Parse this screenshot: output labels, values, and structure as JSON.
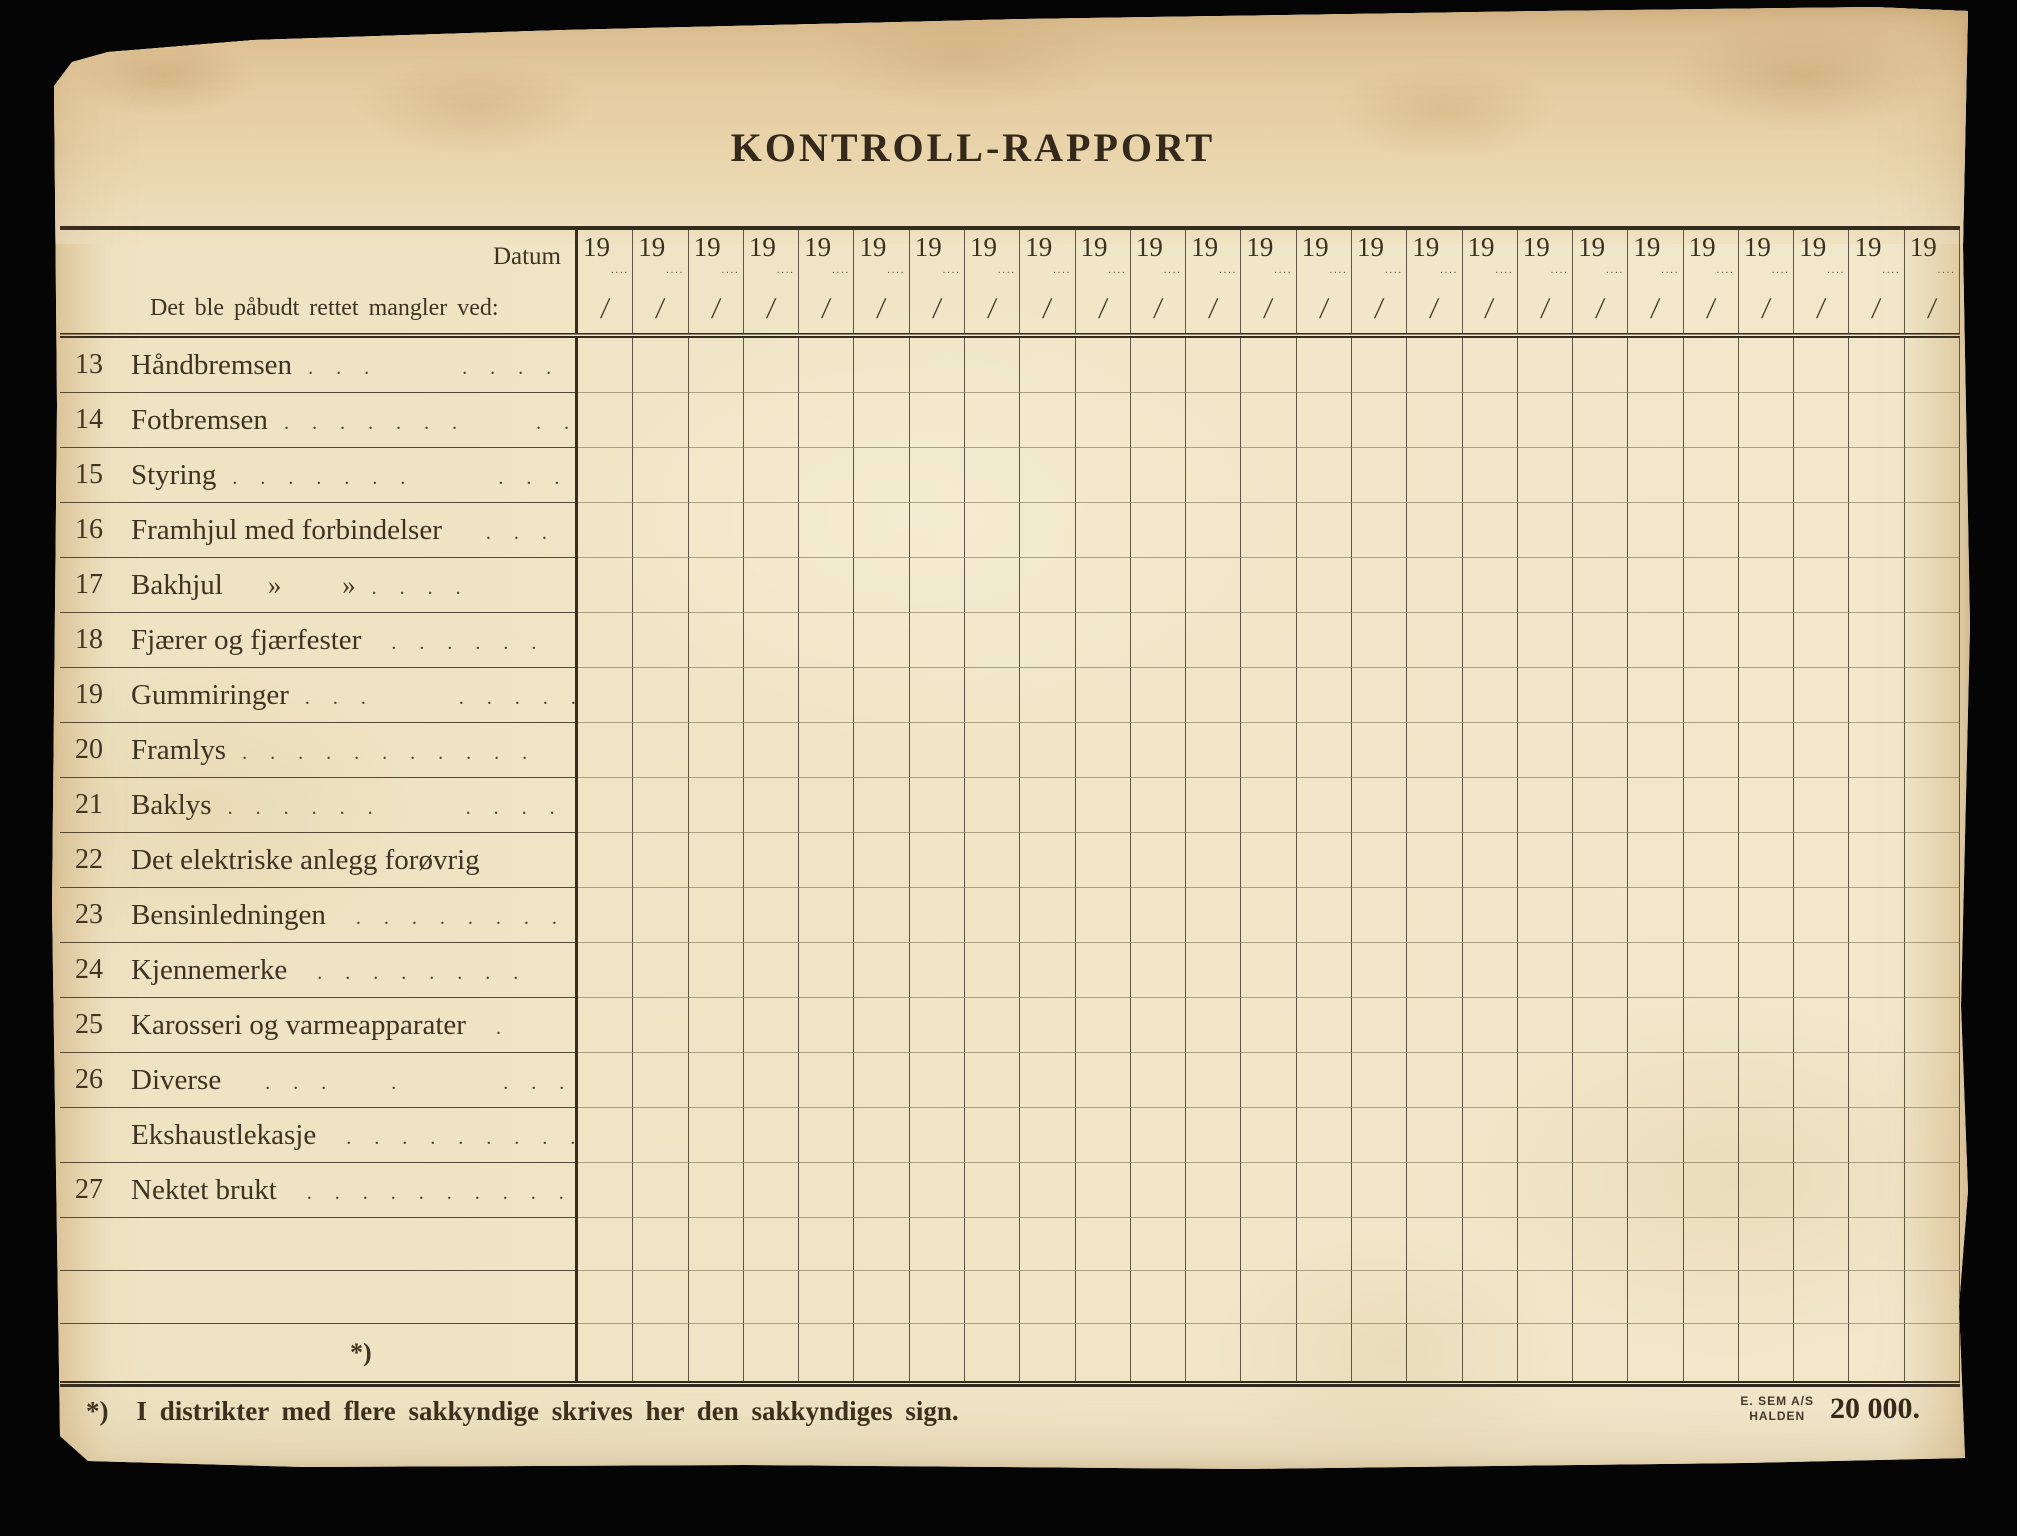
{
  "title": "KONTROLL-RAPPORT",
  "header": {
    "datum_label": "Datum",
    "year_prefix": "19",
    "year_dots": "....",
    "slash": "/",
    "left_heading": "Det ble påbudt rettet mangler ved:",
    "column_count": 25
  },
  "rows": [
    {
      "num": "13",
      "label": "Håndbremsen",
      "dots": ". . .      . . . . ."
    },
    {
      "num": "14",
      "label": "Fotbremsen",
      "dots": ". . . . . . .     . . ."
    },
    {
      "num": "15",
      "label": "Styring",
      "dots": ". . . . . . .      . . . . ."
    },
    {
      "num": "16",
      "label": "Framhjul med forbindelser",
      "dots": "  . . ."
    },
    {
      "num": "17",
      "label": "Bakhjul",
      "ditto": "»         »",
      "dots": ". . . ."
    },
    {
      "num": "18",
      "label": "Fjærer og fjærfester",
      "dots": " . . . . . ."
    },
    {
      "num": "19",
      "label": "Gummiringer",
      "dots": ". . .      . . . . . ."
    },
    {
      "num": "20",
      "label": "Framlys",
      "dots": ". . . . . . . . . . ."
    },
    {
      "num": "21",
      "label": "Baklys",
      "dots": ". . . . . .      . . . . ."
    },
    {
      "num": "22",
      "label": "Det elektriske anlegg forøvrig",
      "dots": "        ."
    },
    {
      "num": "23",
      "label": "Bensinledningen",
      "dots": " . . . . . . . ."
    },
    {
      "num": "24",
      "label": "Kjennemerke",
      "dots": " . . . . . . . ."
    },
    {
      "num": "25",
      "label": "Karosseri og varmeapparater",
      "dots": " .      ."
    },
    {
      "num": "26",
      "label": "Diverse",
      "dots": "  . . .    .       . . . ."
    },
    {
      "num": "",
      "label": "Ekshaustlekasje",
      "dots": " . . . . . . . . ."
    },
    {
      "num": "27",
      "label": "Nektet brukt",
      "dots": " . . . . . . . . . ."
    }
  ],
  "empty_row_count": 2,
  "footnote_marker": "*)",
  "footnote": "I distrikter med flere sakkyndige skrives her den sakkyndiges sign.",
  "printer": {
    "line1": "E. SEM A/S",
    "line2": "HALDEN",
    "count": "20 000."
  },
  "colors": {
    "paper": "#f0e7ca",
    "paper_top_band": "#e1c497",
    "ink": "#3e3322",
    "grid_line": "#564836",
    "background": "#050505"
  }
}
